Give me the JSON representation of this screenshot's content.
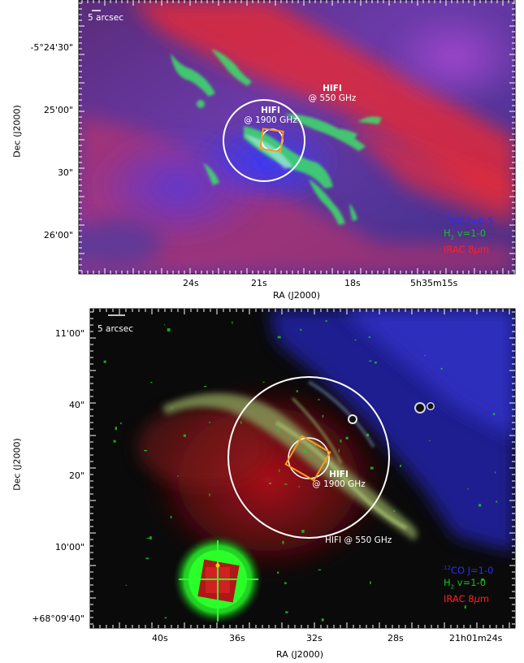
{
  "colors": {
    "co": "#2b2bff",
    "h2": "#19c219",
    "irac": "#ff2020",
    "annotation": "#ffffff",
    "box": "#ff9a1a"
  },
  "top_panel": {
    "scale_bar": "5 arcsec",
    "y_axis_title": "Dec (J2000)",
    "x_axis_title": "RA (J2000)",
    "y_ticks": [
      "-5°24'30\"",
      "25'00\"",
      "30\"",
      "26'00\""
    ],
    "x_ticks": [
      "24s",
      "21s",
      "18s",
      "5h35m15s"
    ],
    "beam_550_label": [
      "HIFI",
      "@ 550 GHz"
    ],
    "beam_1900_label": [
      "HIFI",
      "@ 1900 GHz"
    ],
    "legend": [
      {
        "sup": "12",
        "text": "CO J=6-5",
        "color_key": "co"
      },
      {
        "sub": "2",
        "pre": "H",
        "text": " v=1-0",
        "color_key": "h2"
      },
      {
        "text": "IRAC 8",
        "mu": "μ",
        "tail": "m",
        "color_key": "irac"
      }
    ]
  },
  "bottom_panel": {
    "scale_bar": "5 arcsec",
    "y_axis_title": "Dec (J2000)",
    "x_axis_title": "RA (J2000)",
    "y_ticks": [
      "11'00\"",
      "40\"",
      "20\"",
      "10'00\"",
      "+68°09'40\""
    ],
    "x_ticks": [
      "40s",
      "36s",
      "32s",
      "28s",
      "21h01m24s"
    ],
    "beam_550_label": "HIFI @ 550 GHz",
    "beam_1900_label": [
      "HIFI",
      "@ 1900 GHz"
    ],
    "legend": [
      {
        "sup": "12",
        "text": "CO J=1-0",
        "color_key": "co"
      },
      {
        "sub": "2",
        "pre": "H",
        "text": " v=1-0",
        "color_key": "h2"
      },
      {
        "text": "IRAC 8",
        "mu": "μ",
        "tail": "m",
        "color_key": "irac"
      }
    ]
  }
}
